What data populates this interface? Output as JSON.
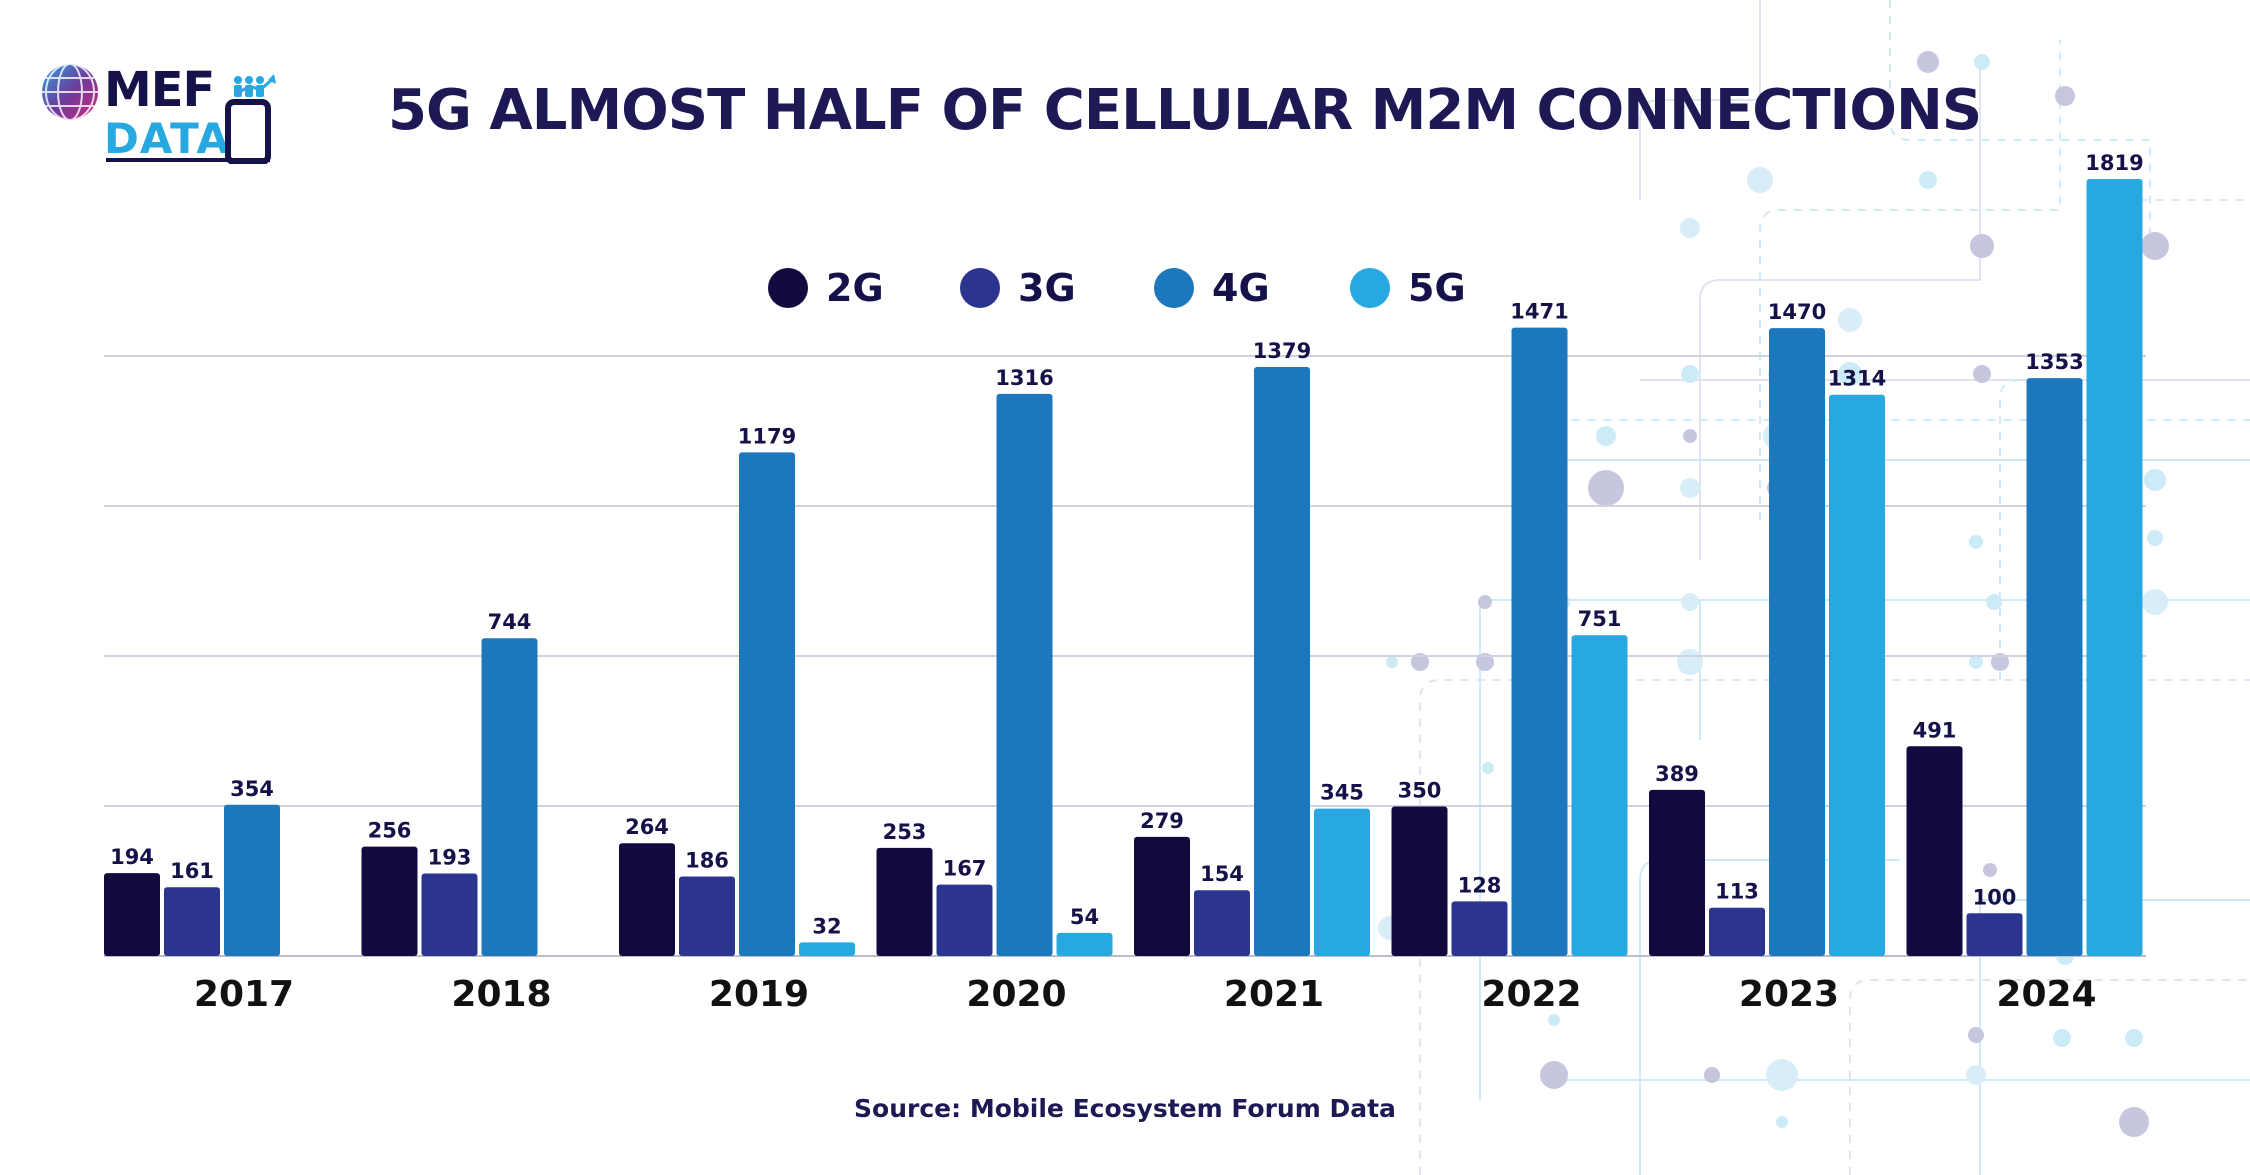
{
  "brand": {
    "logo_top": "MEF",
    "logo_bottom": "DATA"
  },
  "title": "5G ALMOST HALF OF CELLULAR M2M CONNECTIONS",
  "source": "Source: Mobile Ecosystem Forum Data",
  "colors": {
    "2G": "#12093f",
    "3G": "#2b3590",
    "4G": "#1d77bd",
    "5G": "#27a8e0",
    "gridline": "#cfd3df",
    "text": "#15124a"
  },
  "legend": [
    {
      "label": "2G",
      "color": "#12093f"
    },
    {
      "label": "3G",
      "color": "#2b3590"
    },
    {
      "label": "4G",
      "color": "#1d77bd"
    },
    {
      "label": "5G",
      "color": "#27a8e0"
    }
  ],
  "chart_data": {
    "type": "bar",
    "title": "5G ALMOST HALF OF CELLULAR M2M CONNECTIONS",
    "categories": [
      "2017",
      "2018",
      "2019",
      "2020",
      "2021",
      "2022",
      "2023",
      "2024"
    ],
    "series": [
      {
        "name": "2G",
        "values": [
          194,
          256,
          264,
          253,
          279,
          350,
          389,
          491
        ]
      },
      {
        "name": "3G",
        "values": [
          161,
          193,
          186,
          167,
          154,
          128,
          113,
          100
        ]
      },
      {
        "name": "4G",
        "values": [
          354,
          744,
          1179,
          1316,
          1379,
          1471,
          1470,
          1353
        ]
      },
      {
        "name": "5G",
        "values": [
          null,
          null,
          32,
          54,
          345,
          751,
          1314,
          1819
        ]
      }
    ],
    "ylim": [
      0,
      2000
    ],
    "grid": true,
    "legend_position": "top-center",
    "xlabel": "",
    "ylabel": ""
  }
}
